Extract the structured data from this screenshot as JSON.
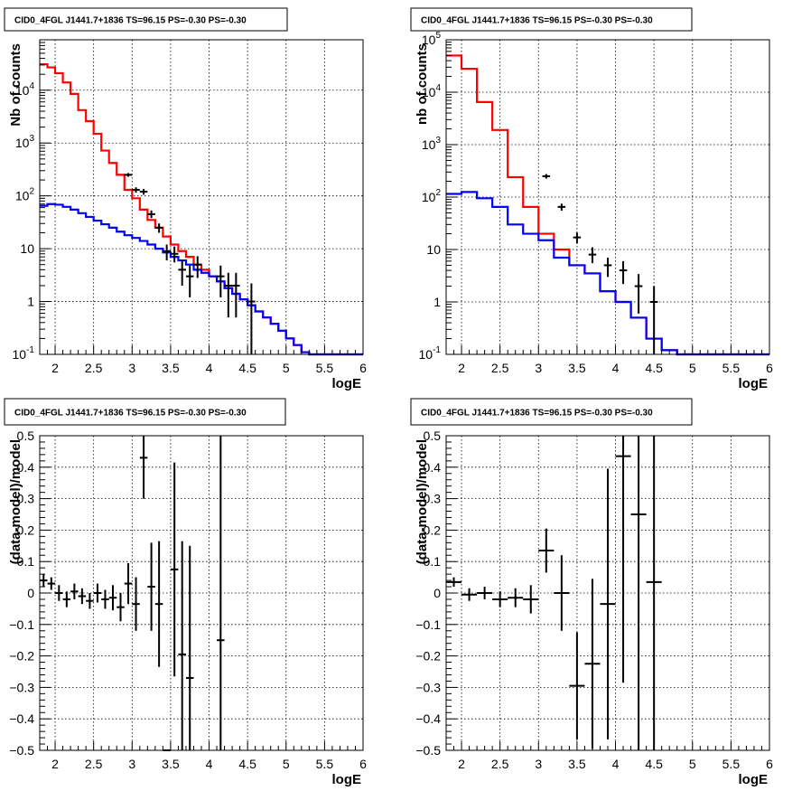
{
  "chart_data": [
    {
      "type": "line",
      "title": "CID0_4FGL J1441.7+1836 TS=96.15 PS=-0.30 PS=-0.30",
      "xlabel": "logE",
      "ylabel": "Nb of counts",
      "log_y": true,
      "xlim": [
        1.8,
        6.0
      ],
      "ylim": [
        0.1,
        90000
      ],
      "x_ticks": [
        "2",
        "2.5",
        "3",
        "3.5",
        "4",
        "4.5",
        "5",
        "5.5",
        "6"
      ],
      "y_ticks": [
        "10^-1",
        "1",
        "10",
        "10^2",
        "10^3",
        "10^4"
      ],
      "grid": true,
      "series": [
        {
          "color": "#ff0000",
          "bin_width": 0.1,
          "x_start": 1.8,
          "values": [
            31000,
            27000,
            21000,
            14000,
            8500,
            4200,
            2600,
            1500,
            720,
            420,
            250,
            130,
            90,
            55,
            35,
            25,
            17,
            12,
            9,
            7,
            5,
            4,
            3,
            2.4,
            1.8,
            1.4,
            1.1,
            0.85,
            0.65,
            0.5,
            0.38,
            0.28,
            0.2,
            0.15,
            0.11,
            0.1,
            0.1,
            0.1,
            0.1,
            0.1,
            0.1,
            0.1
          ]
        },
        {
          "color": "#0000ff",
          "bin_width": 0.1,
          "x_start": 1.8,
          "values": [
            65,
            70,
            68,
            62,
            55,
            47,
            40,
            34,
            29,
            25,
            21,
            18,
            16,
            14,
            12,
            10,
            8.5,
            7,
            6,
            5,
            4,
            3.5,
            3,
            2.4,
            1.8,
            1.4,
            1.1,
            0.85,
            0.65,
            0.5,
            0.38,
            0.28,
            0.2,
            0.15,
            0.11,
            0.1,
            0.1,
            0.1,
            0.1,
            0.1,
            0.1,
            0.1
          ]
        },
        {
          "color": "#000000",
          "kind": "points",
          "points": [
            {
              "x": 2.95,
              "y": 250,
              "lo": 230,
              "hi": 270
            },
            {
              "x": 3.05,
              "y": 130,
              "lo": 115,
              "hi": 145
            },
            {
              "x": 3.15,
              "y": 120,
              "lo": 105,
              "hi": 135
            },
            {
              "x": 3.25,
              "y": 45,
              "lo": 38,
              "hi": 53
            },
            {
              "x": 3.35,
              "y": 25,
              "lo": 20,
              "hi": 30
            },
            {
              "x": 3.45,
              "y": 9,
              "lo": 6,
              "hi": 12
            },
            {
              "x": 3.55,
              "y": 8,
              "lo": 5.5,
              "hi": 11
            },
            {
              "x": 3.65,
              "y": 4,
              "lo": 2,
              "hi": 6
            },
            {
              "x": 3.75,
              "y": 3,
              "lo": 1.2,
              "hi": 4.8
            },
            {
              "x": 3.85,
              "y": 5,
              "lo": 2.8,
              "hi": 7.2
            },
            {
              "x": 4.15,
              "y": 3,
              "lo": 1.2,
              "hi": 4.8
            },
            {
              "x": 4.25,
              "y": 2,
              "lo": 0.5,
              "hi": 3.5
            },
            {
              "x": 4.35,
              "y": 2,
              "lo": 0.5,
              "hi": 3.5
            },
            {
              "x": 4.55,
              "y": 1,
              "lo": 0.1,
              "hi": 2.2
            }
          ]
        }
      ]
    },
    {
      "type": "line",
      "title": "CID0_4FGL J1441.7+1836 TS=96.15 PS=-0.30 PS=-0.30",
      "xlabel": "logE",
      "ylabel": "nb of counts",
      "log_y": true,
      "xlim": [
        1.8,
        6.0
      ],
      "ylim": [
        0.1,
        100000
      ],
      "x_ticks": [
        "2",
        "2.5",
        "3",
        "3.5",
        "4",
        "4.5",
        "5",
        "5.5",
        "6"
      ],
      "y_ticks": [
        "10^-1",
        "1",
        "10",
        "10^2",
        "10^3",
        "10^4",
        "10^5"
      ],
      "grid": true,
      "series": [
        {
          "color": "#ff0000",
          "bin_width": 0.2,
          "x_start": 1.8,
          "values": [
            50000,
            28000,
            6500,
            1900,
            240,
            65,
            20,
            10,
            5,
            3.5,
            1.6,
            1,
            0.5,
            0.2,
            0.12,
            0.1,
            0.1,
            0.1,
            0.1,
            0.1,
            0.1
          ]
        },
        {
          "color": "#0000ff",
          "bin_width": 0.2,
          "x_start": 1.8,
          "values": [
            115,
            125,
            95,
            65,
            30,
            20,
            15,
            7,
            5,
            3.5,
            1.6,
            1,
            0.5,
            0.2,
            0.12,
            0.1,
            0.1,
            0.1,
            0.1,
            0.1,
            0.1
          ]
        },
        {
          "color": "#000000",
          "kind": "points",
          "points": [
            {
              "x": 3.1,
              "y": 250,
              "lo": 225,
              "hi": 275
            },
            {
              "x": 3.3,
              "y": 65,
              "lo": 55,
              "hi": 75
            },
            {
              "x": 3.5,
              "y": 17,
              "lo": 13,
              "hi": 21
            },
            {
              "x": 3.7,
              "y": 8,
              "lo": 5.5,
              "hi": 11
            },
            {
              "x": 3.9,
              "y": 5,
              "lo": 3,
              "hi": 7
            },
            {
              "x": 4.1,
              "y": 4,
              "lo": 2.2,
              "hi": 6
            },
            {
              "x": 4.3,
              "y": 2,
              "lo": 0.6,
              "hi": 3.4
            },
            {
              "x": 4.5,
              "y": 1,
              "lo": 0.1,
              "hi": 2
            }
          ]
        }
      ]
    },
    {
      "type": "scatter",
      "title": "CID0_4FGL J1441.7+1836 TS=96.15 PS=-0.30 PS=-0.30",
      "xlabel": "logE",
      "ylabel": "(data-model)/model",
      "xlim": [
        1.8,
        6.0
      ],
      "ylim": [
        -0.5,
        0.5
      ],
      "x_ticks": [
        "2",
        "2.5",
        "3",
        "3.5",
        "4",
        "4.5",
        "5",
        "5.5",
        "6"
      ],
      "y_ticks": [
        "-0.5",
        "-0.4",
        "-0.3",
        "-0.2",
        "-0.1",
        "0",
        "0.1",
        "0.2",
        "0.3",
        "0.4",
        "0.5"
      ],
      "grid": true,
      "points": [
        {
          "x": 1.85,
          "y": 0.04,
          "yerr": 0.02
        },
        {
          "x": 1.95,
          "y": 0.03,
          "yerr": 0.02
        },
        {
          "x": 2.05,
          "y": 0.0,
          "yerr": 0.025
        },
        {
          "x": 2.15,
          "y": -0.02,
          "yerr": 0.025
        },
        {
          "x": 2.25,
          "y": 0.005,
          "yerr": 0.025
        },
        {
          "x": 2.35,
          "y": -0.01,
          "yerr": 0.025
        },
        {
          "x": 2.45,
          "y": -0.025,
          "yerr": 0.025
        },
        {
          "x": 2.55,
          "y": 0.0,
          "yerr": 0.03
        },
        {
          "x": 2.65,
          "y": -0.02,
          "yerr": 0.03
        },
        {
          "x": 2.75,
          "y": -0.015,
          "yerr": 0.04
        },
        {
          "x": 2.85,
          "y": -0.045,
          "yerr": 0.045
        },
        {
          "x": 2.95,
          "y": 0.03,
          "yerr": 0.065
        },
        {
          "x": 3.05,
          "y": -0.035,
          "yerr": 0.085
        },
        {
          "x": 3.15,
          "y": 0.43,
          "yerr": 0.13
        },
        {
          "x": 3.25,
          "y": 0.02,
          "yerr": 0.14
        },
        {
          "x": 3.35,
          "y": -0.035,
          "yerr": 0.2
        },
        {
          "x": 3.45,
          "y": -0.5,
          "yerr": 0.0
        },
        {
          "x": 3.55,
          "y": 0.075,
          "yerr": 0.34
        },
        {
          "x": 3.65,
          "y": -0.195,
          "yerr": 0.36
        },
        {
          "x": 3.75,
          "y": -0.27,
          "yerr": 0.42
        },
        {
          "x": 4.15,
          "y": -0.15,
          "yerr": 0.8
        }
      ]
    },
    {
      "type": "scatter",
      "title": "CID0_4FGL J1441.7+1836 TS=96.15 PS=-0.30 PS=-0.30",
      "xlabel": "logE",
      "ylabel": "(data-model)/model",
      "xlim": [
        1.8,
        6.0
      ],
      "ylim": [
        -0.5,
        0.5
      ],
      "x_ticks": [
        "2",
        "2.5",
        "3",
        "3.5",
        "4",
        "4.5",
        "5",
        "5.5",
        "6"
      ],
      "y_ticks": [
        "-0.5",
        "-0.4",
        "-0.3",
        "-0.2",
        "-0.1",
        "0",
        "0.1",
        "0.2",
        "0.3",
        "0.4",
        "0.5"
      ],
      "grid": true,
      "points": [
        {
          "x": 1.9,
          "y": 0.035,
          "yerr": 0.015
        },
        {
          "x": 2.1,
          "y": -0.005,
          "yerr": 0.02
        },
        {
          "x": 2.3,
          "y": 0.0,
          "yerr": 0.02
        },
        {
          "x": 2.5,
          "y": -0.02,
          "yerr": 0.025
        },
        {
          "x": 2.7,
          "y": -0.015,
          "yerr": 0.03
        },
        {
          "x": 2.9,
          "y": -0.02,
          "yerr": 0.045
        },
        {
          "x": 3.1,
          "y": 0.135,
          "yerr": 0.07
        },
        {
          "x": 3.3,
          "y": 0.0,
          "yerr": 0.12
        },
        {
          "x": 3.5,
          "y": -0.295,
          "yerr": 0.17
        },
        {
          "x": 3.7,
          "y": -0.225,
          "yerr": 0.27
        },
        {
          "x": 3.9,
          "y": -0.035,
          "yerr": 0.43
        },
        {
          "x": 4.1,
          "y": 0.435,
          "yerr": 0.72
        },
        {
          "x": 4.3,
          "y": 0.25,
          "yerr": 0.9
        },
        {
          "x": 4.5,
          "y": 0.035,
          "yerr": 1.0
        }
      ]
    }
  ]
}
